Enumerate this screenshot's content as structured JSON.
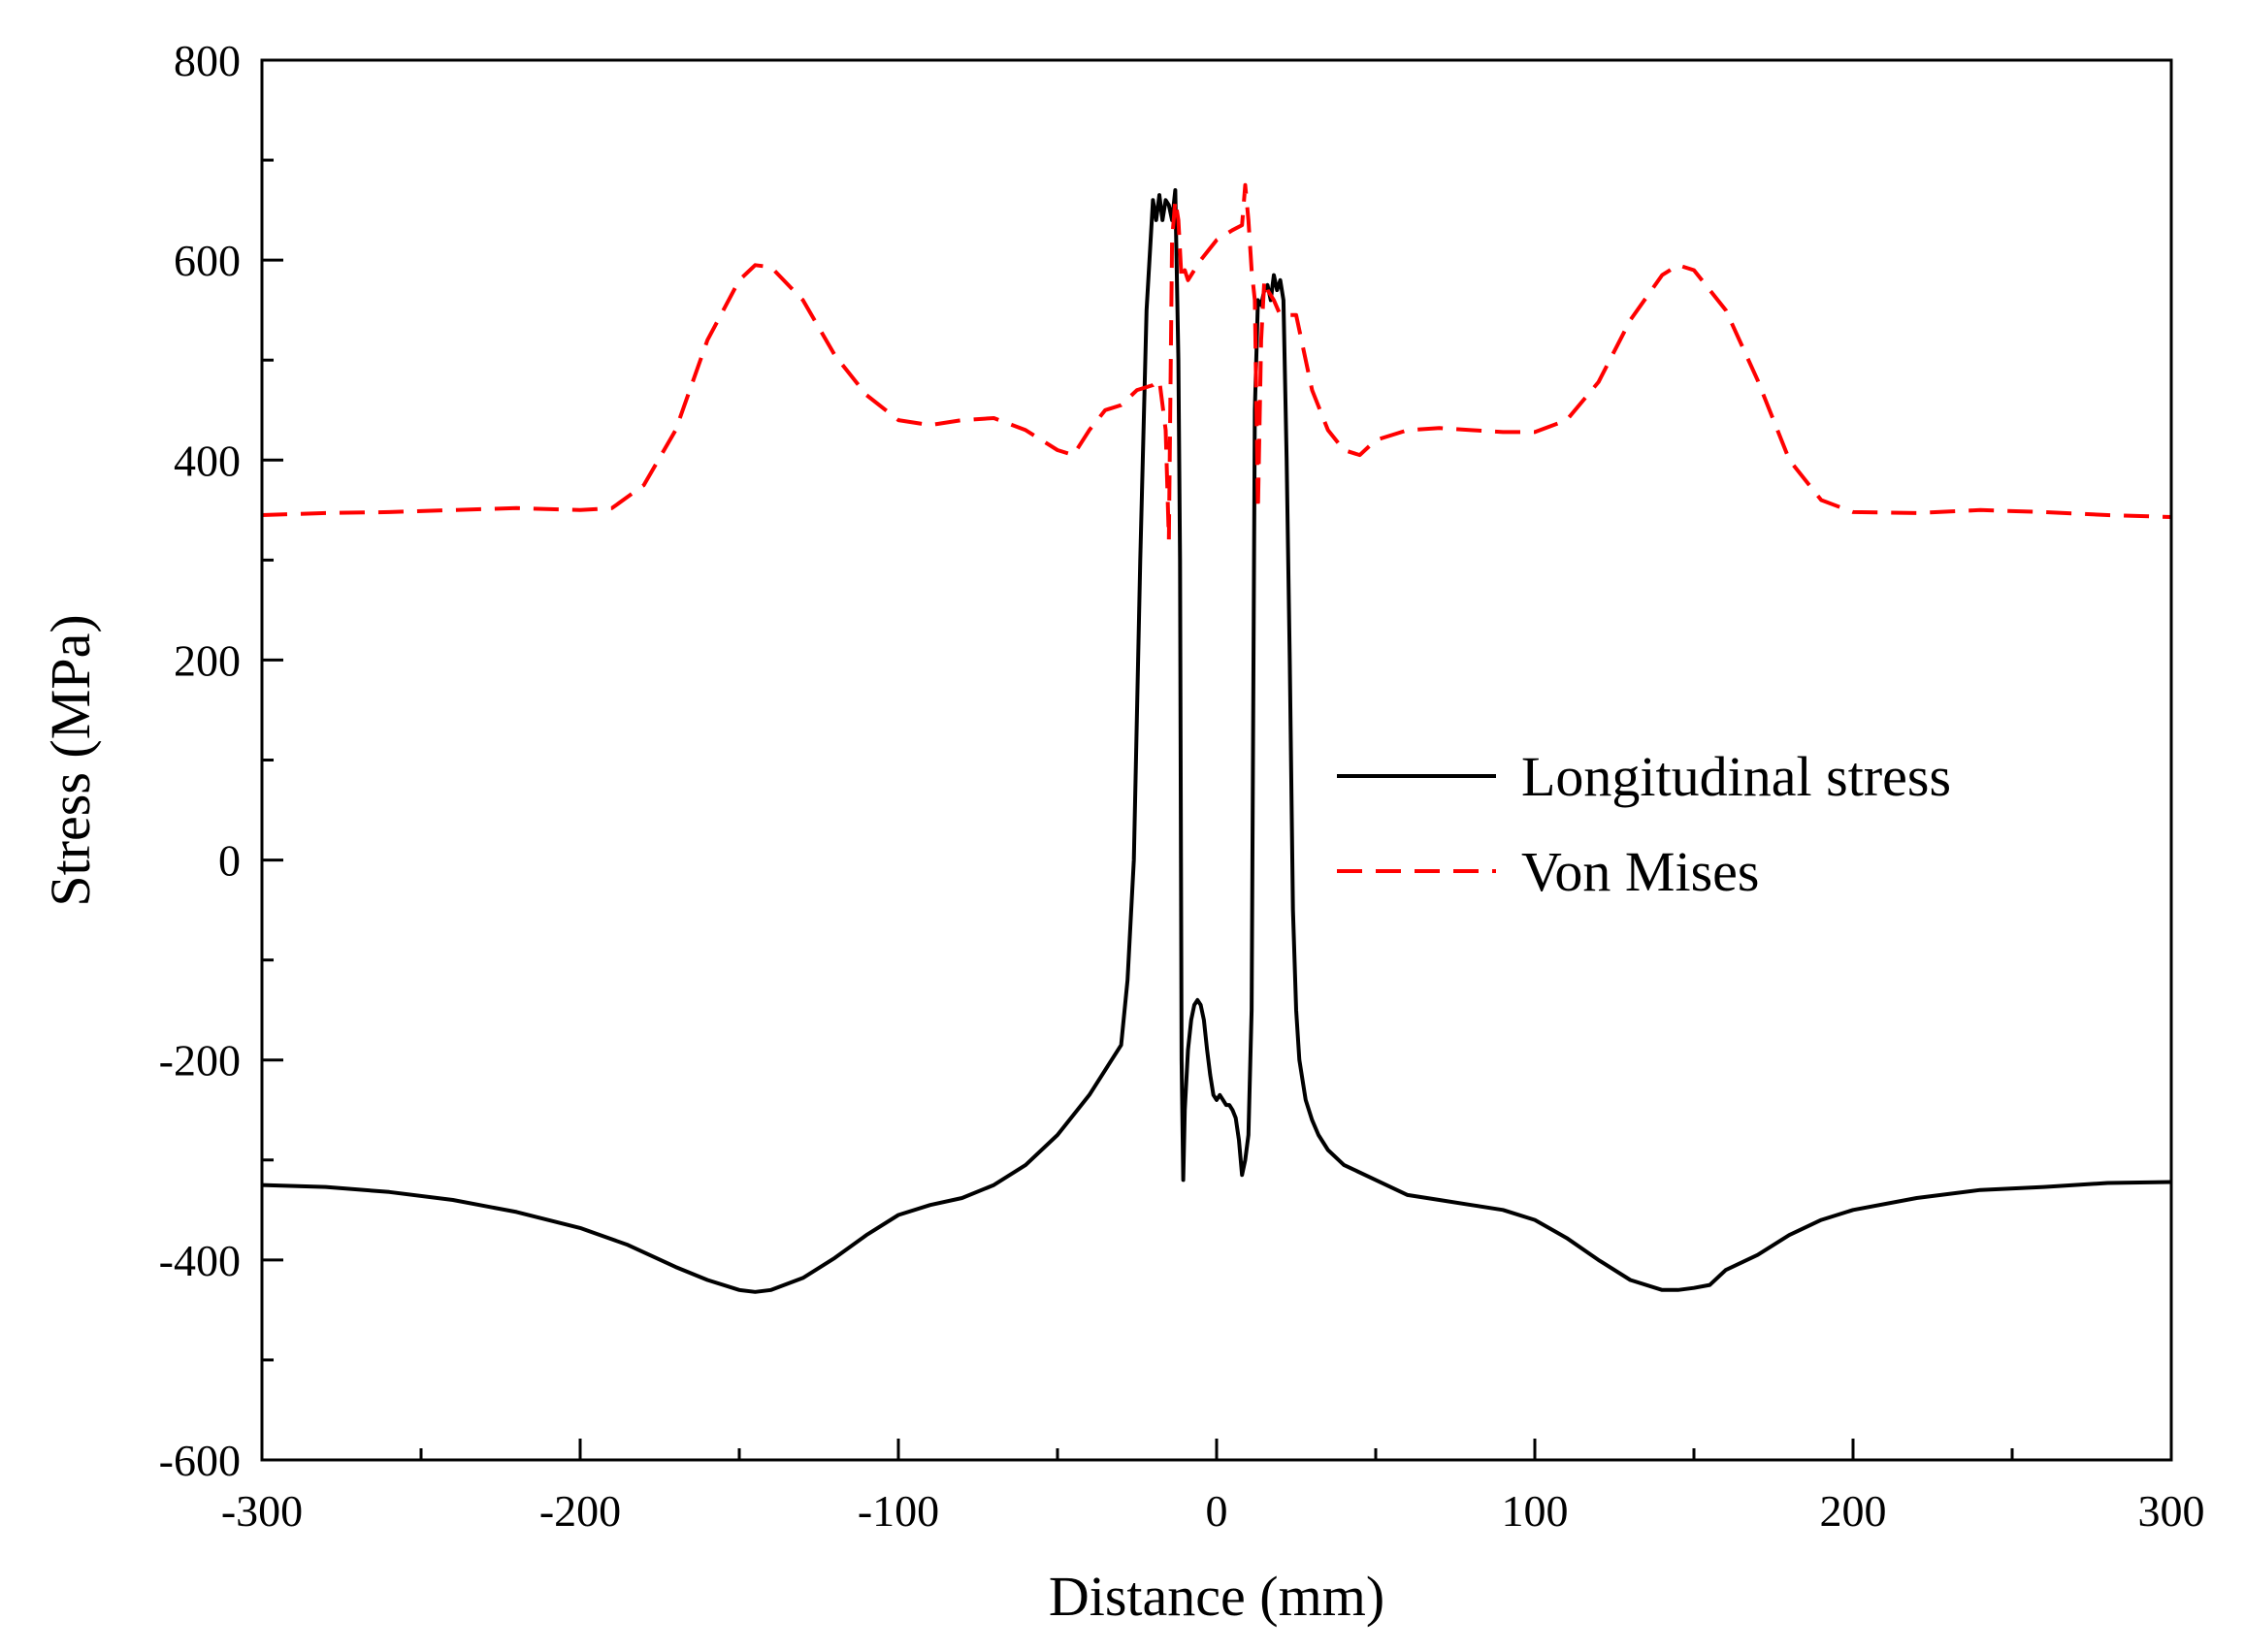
{
  "chart_data": {
    "type": "line",
    "title": "",
    "xlabel": "Distance (mm)",
    "ylabel": "Stress (MPa)",
    "xlim": [
      -300,
      300
    ],
    "ylim": [
      -600,
      800
    ],
    "xticks": [
      -300,
      -200,
      -100,
      0,
      100,
      200,
      300
    ],
    "xtick_labels": [
      "-300",
      "-200",
      "-100",
      "0",
      "100",
      "200",
      "300"
    ],
    "yticks": [
      -600,
      -400,
      -200,
      0,
      200,
      400,
      600,
      800
    ],
    "ytick_labels": [
      "-600",
      "-400",
      "-200",
      "0",
      "200",
      "400",
      "600",
      "800"
    ],
    "grid": false,
    "legend_position": "center-right",
    "series": [
      {
        "name": "Longitudinal stress",
        "color": "#000000",
        "style": "solid",
        "x": [
          -300,
          -280,
          -260,
          -240,
          -220,
          -200,
          -185,
          -170,
          -160,
          -150,
          -145,
          -140,
          -130,
          -120,
          -110,
          -100,
          -90,
          -80,
          -70,
          -60,
          -50,
          -40,
          -30,
          -28,
          -26,
          -24,
          -22,
          -20,
          -19,
          -18,
          -17,
          -16,
          -15,
          -14,
          -13,
          -12,
          -11.5,
          -11,
          -10.5,
          -10,
          -9,
          -8,
          -7,
          -6,
          -5,
          -4,
          -3,
          -2,
          -1,
          0,
          1,
          2,
          3,
          4,
          5,
          6,
          7,
          8,
          9,
          10,
          11,
          12,
          13,
          14,
          15,
          16,
          17,
          18,
          19,
          20,
          21,
          22,
          23,
          24,
          25,
          26,
          28,
          30,
          32,
          35,
          40,
          50,
          60,
          70,
          80,
          90,
          100,
          110,
          120,
          130,
          140,
          145,
          150,
          155,
          160,
          170,
          180,
          190,
          200,
          220,
          240,
          260,
          280,
          300
        ],
        "y": [
          -325,
          -327,
          -332,
          -340,
          -352,
          -368,
          -385,
          -407,
          -420,
          -430,
          -432,
          -430,
          -418,
          -398,
          -375,
          -355,
          -345,
          -338,
          -325,
          -305,
          -275,
          -235,
          -185,
          -120,
          0,
          300,
          550,
          660,
          640,
          665,
          640,
          660,
          655,
          640,
          670,
          500,
          300,
          -200,
          -320,
          -250,
          -190,
          -160,
          -145,
          -140,
          -145,
          -160,
          -190,
          -215,
          -235,
          -240,
          -235,
          -240,
          -245,
          -245,
          -250,
          -258,
          -280,
          -315,
          -300,
          -275,
          -150,
          450,
          560,
          555,
          570,
          575,
          560,
          585,
          570,
          580,
          560,
          400,
          200,
          -50,
          -150,
          -200,
          -240,
          -260,
          -275,
          -290,
          -305,
          -320,
          -335,
          -340,
          -345,
          -350,
          -360,
          -378,
          -400,
          -420,
          -430,
          -430,
          -428,
          -425,
          -410,
          -395,
          -375,
          -360,
          -350,
          -338,
          -330,
          -327,
          -323,
          -322
        ]
      },
      {
        "name": "Von Mises",
        "color": "#ff0000",
        "style": "dashed",
        "x": [
          -300,
          -280,
          -260,
          -240,
          -220,
          -200,
          -190,
          -180,
          -170,
          -160,
          -150,
          -145,
          -140,
          -130,
          -120,
          -110,
          -100,
          -90,
          -80,
          -70,
          -60,
          -50,
          -45,
          -40,
          -35,
          -30,
          -25,
          -20,
          -18,
          -16,
          -15,
          -14,
          -13,
          -12,
          -11,
          -10,
          -9,
          -5,
          0,
          5,
          8,
          9,
          10,
          11,
          12,
          13,
          14,
          15,
          16,
          18,
          20,
          22,
          25,
          30,
          35,
          40,
          45,
          50,
          60,
          70,
          80,
          90,
          100,
          110,
          120,
          130,
          140,
          145,
          150,
          160,
          170,
          180,
          190,
          200,
          220,
          240,
          260,
          280,
          300
        ],
        "y": [
          345,
          347,
          348,
          350,
          352,
          350,
          352,
          375,
          430,
          520,
          580,
          595,
          593,
          560,
          505,
          465,
          440,
          435,
          440,
          442,
          430,
          410,
          405,
          430,
          450,
          455,
          470,
          475,
          480,
          430,
          320,
          620,
          660,
          640,
          580,
          590,
          580,
          600,
          620,
          630,
          635,
          675,
          640,
          590,
          560,
          350,
          520,
          580,
          570,
          560,
          545,
          545,
          545,
          470,
          430,
          410,
          405,
          420,
          430,
          432,
          430,
          428,
          428,
          440,
          478,
          540,
          585,
          595,
          590,
          550,
          480,
          400,
          360,
          348,
          347,
          350,
          348,
          345,
          343
        ]
      }
    ]
  }
}
